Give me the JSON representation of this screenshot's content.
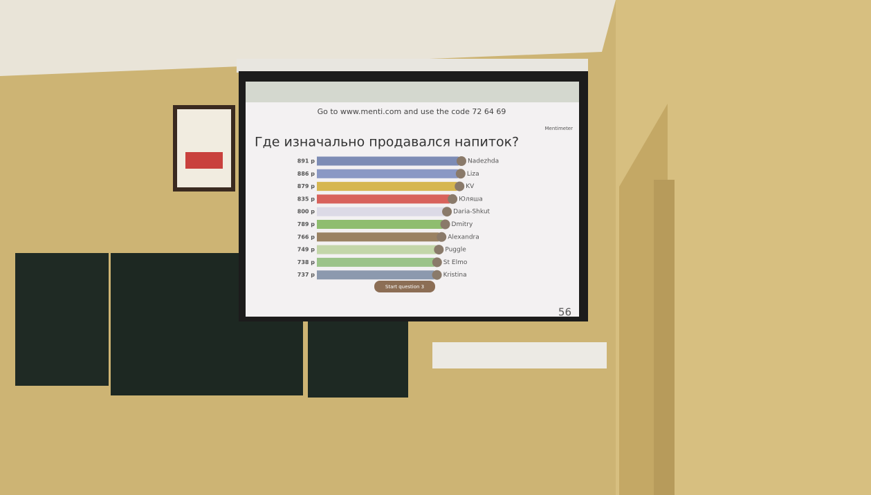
{
  "chart_data": {
    "type": "bar",
    "orientation": "horizontal",
    "title": "Где изначально продавался напиток?",
    "categories": [
      "Nadezhda",
      "Liza",
      "KV",
      "Юляша",
      "Daria-Shkut",
      "Dmitry",
      "Alexandra",
      "Puggle",
      "St Elmo",
      "Kristina"
    ],
    "values": [
      891,
      886,
      879,
      835,
      800,
      789,
      766,
      749,
      738,
      737
    ],
    "value_labels": [
      "891 p",
      "886 p",
      "879 p",
      "835 p",
      "800 p",
      "789 p",
      "766 p",
      "749 p",
      "738 p",
      "737 p"
    ],
    "colors": [
      "#7d8cb5",
      "#8a98c4",
      "#d6b650",
      "#d8625c",
      "#dcdae6",
      "#8fbd6f",
      "#9a8263",
      "#c3d6a9",
      "#9bc389",
      "#8c99ae"
    ]
  },
  "screen": {
    "header": "Go to www.menti.com and use the code 72 64 69",
    "brand": "Mentimeter",
    "button": "Start question 3",
    "participants": "56"
  }
}
